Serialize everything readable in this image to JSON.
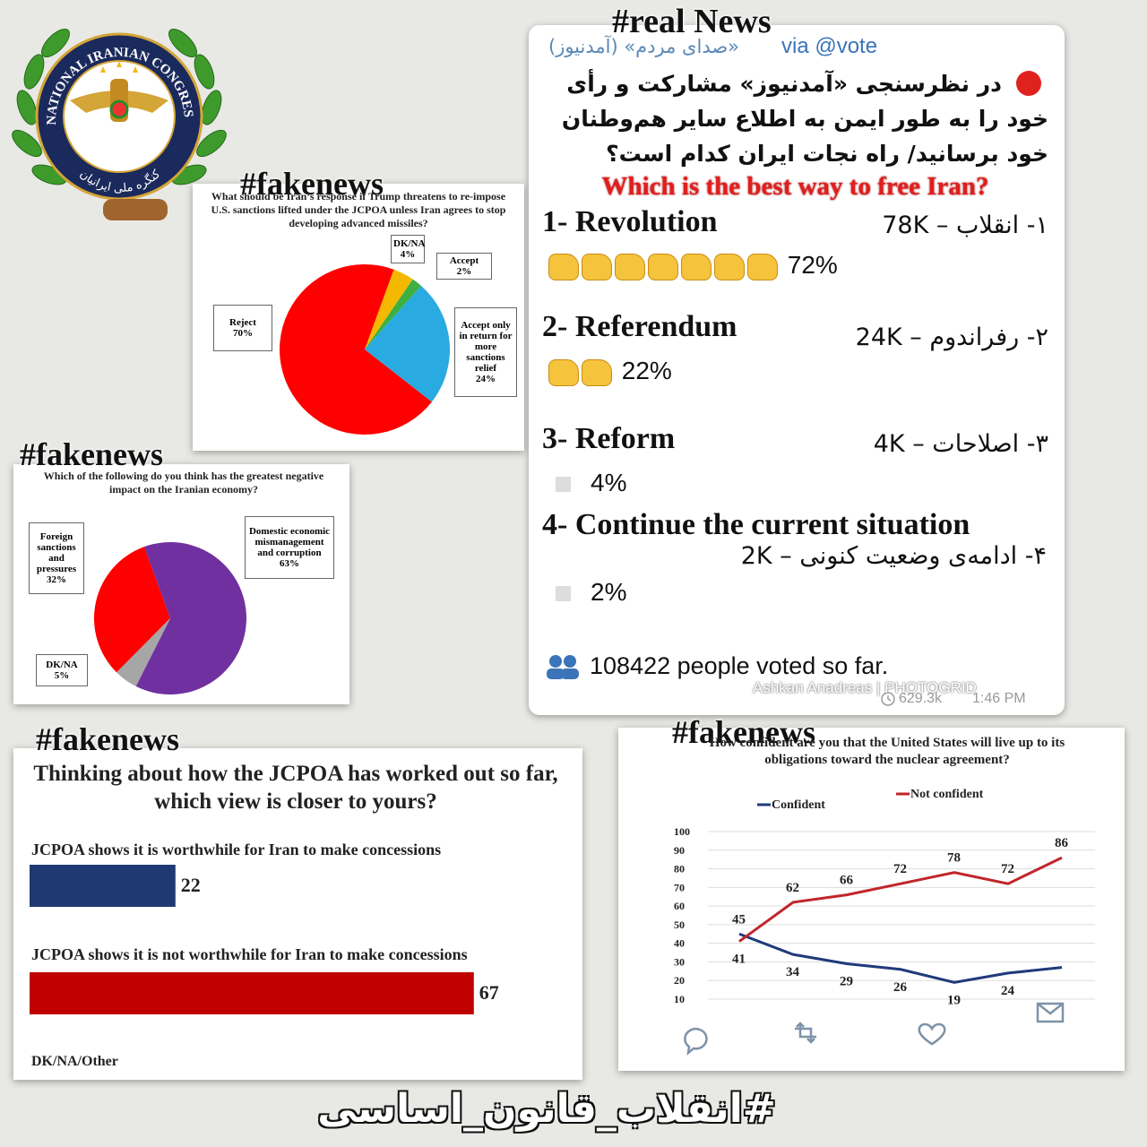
{
  "logo": {
    "name_en": "NATIONAL IRANIAN CONGRESS",
    "name_fa": "کنگره ملی ایرانیان"
  },
  "chart_data": [
    {
      "type": "pie",
      "badge": "#fakenews",
      "title": "What should be Iran’s response if Trump threatens to re-impose U.S. sanctions lifted under the JCPOA unless Iran agrees to stop developing advanced missiles?",
      "categories": [
        "DK/NA",
        "Accept",
        "Accept only in return for more sanctions relief",
        "Reject"
      ],
      "values": [
        4,
        2,
        24,
        70
      ],
      "value_labels": [
        "4%",
        "2%",
        "24%",
        "70%"
      ],
      "colors": [
        "#f5b800",
        "#3cb043",
        "#29aae1",
        "#ff0000"
      ]
    },
    {
      "type": "pie",
      "badge": "#fakenews",
      "title": "Which of the following do you think has the greatest negative impact on the Iranian economy?",
      "categories": [
        "Foreign sanctions and pressures",
        "Domestic economic mismanagement and corruption",
        "DK/NA"
      ],
      "values": [
        32,
        63,
        5
      ],
      "value_labels": [
        "32%",
        "63%",
        "5%"
      ],
      "colors": [
        "#ff0000",
        "#7030a0",
        "#a6a6a6"
      ]
    },
    {
      "type": "bar",
      "badge": "#fakenews",
      "title": "Thinking about how the JCPOA has worked out so far, which view is closer to yours?",
      "categories": [
        "JCPOA shows it is worthwhile for Iran to make concessions",
        "JCPOA shows it is not worthwhile for Iran to make concessions",
        "DK/NA/Other"
      ],
      "values": [
        22,
        67,
        null
      ],
      "colors": [
        "#1f3a73",
        "#c00000",
        null
      ]
    },
    {
      "type": "line",
      "badge": "#fakenews",
      "title": "How confident are you that the United States will live up to its obligations toward the nuclear agreement?",
      "categories": [
        null,
        null,
        null,
        null,
        null,
        null,
        null
      ],
      "series": [
        {
          "name": "Confident",
          "color": "#1f3a7a",
          "values": [
            45,
            34,
            29,
            26,
            19,
            24,
            27
          ],
          "value_labels": [
            "45",
            "34",
            "29",
            "26",
            "19",
            "24",
            null
          ]
        },
        {
          "name": "Not confident",
          "color": "#c0262b",
          "values": [
            41,
            62,
            66,
            72,
            78,
            72,
            86
          ]
        }
      ],
      "ylim": [
        10,
        100
      ],
      "yticks": [
        10,
        20,
        30,
        40,
        50,
        60,
        70,
        80,
        90,
        100
      ],
      "grid": true
    }
  ],
  "poll": {
    "heading": "#real News",
    "channel": "«صدای مردم» (آمدنیوز)",
    "via": "via @vote",
    "question_fa": "در نظرسنجی «آمدنیوز» مشارکت و رأی خود را به طور ایمن به اطلاع سایر هم‌وطنان خود برسانید/ راه نجات ایران کدام است؟",
    "question_en": "Which is the best way to free Iran?",
    "options": [
      {
        "en": "1- Revolution",
        "fa": "۱- انقلاب – 78K",
        "percent": "72%"
      },
      {
        "en": "2- Referendum",
        "fa": "۲- رفراندوم – 24K",
        "percent": "22%"
      },
      {
        "en": "3- Reform",
        "fa": "۳- اصلاحات – 4K",
        "percent": "4%"
      },
      {
        "en": "4- Continue the current situation",
        "fa": "۴- ادامه‌ی وضعیت کنونی – 2K",
        "percent": "2%"
      }
    ],
    "total": "108422 people voted so far.",
    "watermark": "Ashkan Anadreas | PHOTOGRID",
    "views": "629.3k",
    "time": "1:46 PM"
  },
  "hashtag": "#انقلاب_قانون_اساسی"
}
